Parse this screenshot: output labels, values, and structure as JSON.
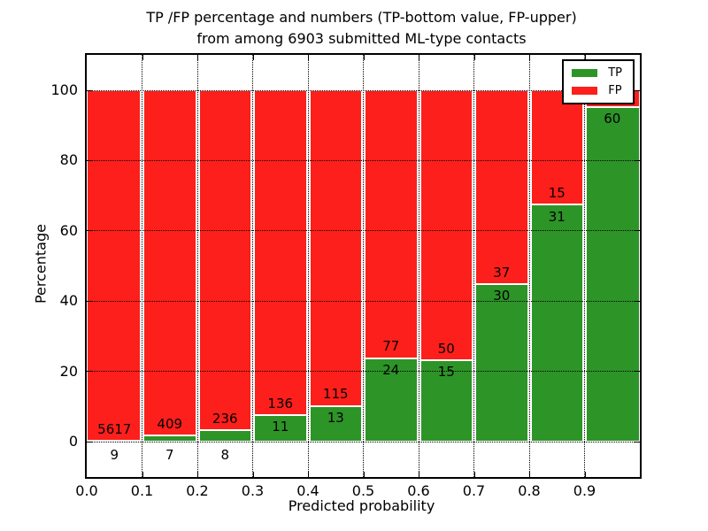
{
  "title": {
    "line1": "TP /FP percentage and numbers (TP-bottom value, FP-upper)",
    "line2": "from among 6903 submitted ML-type contacts"
  },
  "axes": {
    "xlabel": "Predicted probability",
    "ylabel": "Percentage"
  },
  "legend": {
    "tp_label": "TP",
    "fp_label": "FP"
  },
  "colors": {
    "tp_green": "#2d9428",
    "fp_red": "#fc1f1b",
    "grid": "#000000",
    "background": "#ffffff"
  },
  "chart_data": {
    "type": "bar",
    "stacked": true,
    "normalized_to_percent": true,
    "title": "TP /FP percentage and numbers (TP-bottom value, FP-upper)\nfrom among 6903 submitted ML-type contacts",
    "xlabel": "Predicted probability",
    "ylabel": "Percentage",
    "xlim": [
      0.0,
      1.0
    ],
    "ylim": [
      -10,
      110
    ],
    "x_tick_labels": [
      "0.0",
      "0.1",
      "0.2",
      "0.3",
      "0.4",
      "0.5",
      "0.6",
      "0.7",
      "0.8",
      "0.9"
    ],
    "y_ticks": [
      0,
      20,
      40,
      60,
      80,
      100
    ],
    "grid": true,
    "legend_position": "upper right",
    "categories": [
      "0.0-0.1",
      "0.1-0.2",
      "0.2-0.3",
      "0.3-0.4",
      "0.4-0.5",
      "0.5-0.6",
      "0.6-0.7",
      "0.7-0.8",
      "0.8-0.9",
      "0.9-1.0"
    ],
    "series": [
      {
        "name": "TP",
        "color": "#2d9428",
        "counts": [
          9,
          7,
          8,
          11,
          13,
          24,
          15,
          30,
          31,
          60
        ]
      },
      {
        "name": "FP",
        "color": "#fc1f1b",
        "counts": [
          5617,
          409,
          236,
          136,
          115,
          77,
          50,
          37,
          15,
          null
        ]
      }
    ],
    "tp_percent": [
      0.2,
      1.7,
      3.3,
      7.5,
      10.2,
      23.8,
      23.1,
      44.8,
      67.4,
      95.2
    ],
    "note": "Each bar stacks to 100%. TP count label drawn at bottom of bar, FP count label above green segment top. FP count of last bar is hidden behind the legend."
  }
}
